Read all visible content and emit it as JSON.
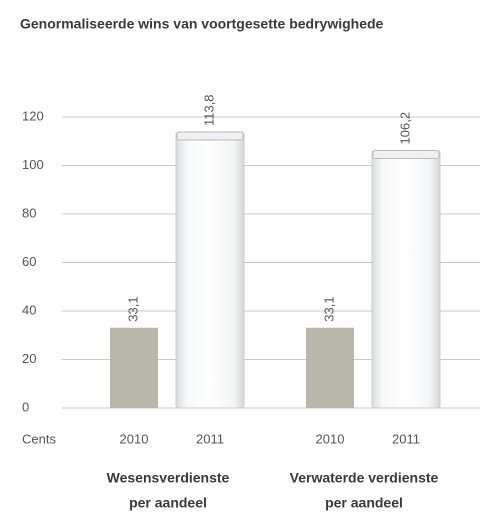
{
  "chart_data": {
    "type": "bar",
    "title": "Genormaliseerde wins van voortgesette bedrywighede",
    "ylabel": "Cents",
    "categories": [
      [
        "Wesensverdienste",
        "per aandeel"
      ],
      [
        "Verwaterde verdienste",
        "per aandeel"
      ]
    ],
    "series": [
      {
        "name": "2010",
        "color": "#b8b7a9",
        "values": [
          33.1,
          33.1
        ],
        "value_labels": [
          "33,1",
          "33,1"
        ]
      },
      {
        "name": "2011",
        "color": "#eef0f2",
        "values": [
          113.8,
          106.2
        ],
        "value_labels": [
          "113,8",
          "106,2"
        ]
      }
    ],
    "ylim": [
      0,
      120
    ],
    "yticks": [
      0,
      20,
      40,
      60,
      80,
      100,
      120
    ],
    "grid": true
  }
}
